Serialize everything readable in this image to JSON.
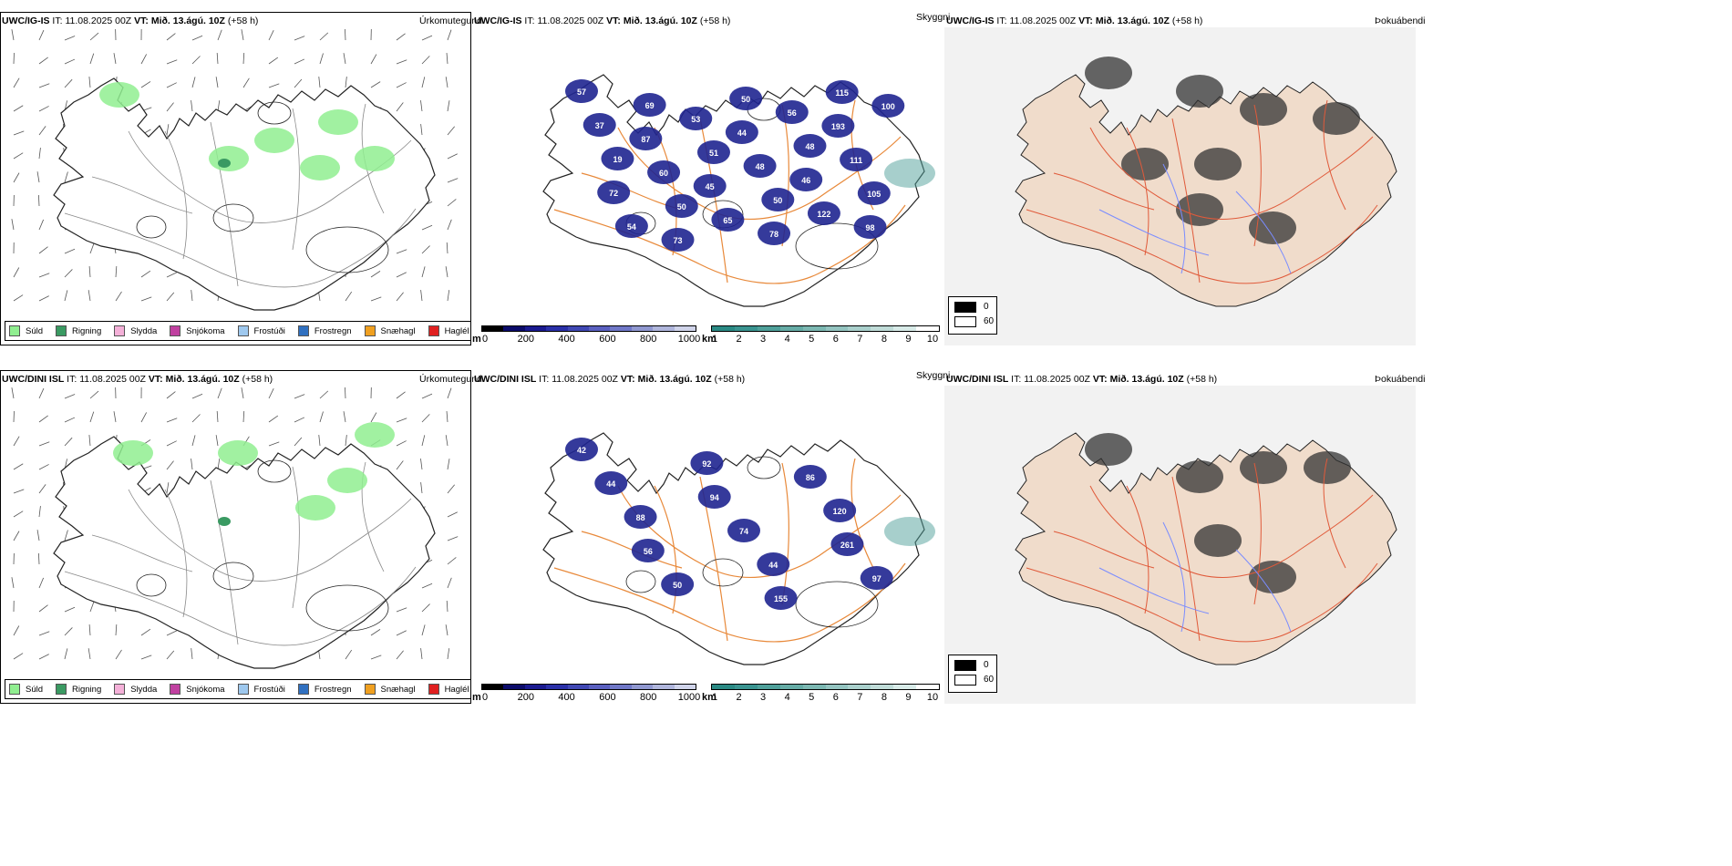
{
  "rows": [
    {
      "model": "UWC/IG-IS",
      "init_label": "IT:",
      "init_time": "11.08.2025 00Z",
      "valid_label": "VT:",
      "valid_time": "Mið. 13.ágú. 10Z",
      "lead": "(+58 h)",
      "precip_blobs": [
        [
          130,
          70
        ],
        [
          370,
          100
        ],
        [
          300,
          120
        ],
        [
          250,
          140
        ],
        [
          350,
          150
        ],
        [
          410,
          140
        ]
      ],
      "cloud_labels": [
        "57",
        "37",
        "19",
        "72",
        "54",
        "69",
        "87",
        "60",
        "50",
        "73",
        "53",
        "51",
        "45",
        "65",
        "50",
        "44",
        "48",
        "50",
        "78",
        "56",
        "48",
        "46",
        "122",
        "115",
        "193",
        "111",
        "105",
        "98",
        "100"
      ],
      "fog_dark": [
        [
          160,
          50
        ],
        [
          260,
          70
        ],
        [
          330,
          90
        ],
        [
          410,
          100
        ],
        [
          280,
          150
        ],
        [
          200,
          150
        ],
        [
          340,
          220
        ],
        [
          260,
          200
        ]
      ]
    },
    {
      "model": "UWC/DINI ISL",
      "init_label": "IT:",
      "init_time": "11.08.2025 00Z",
      "valid_label": "VT:",
      "valid_time": "Mið. 13.ágú. 10Z",
      "lead": "(+58 h)",
      "precip_blobs": [
        [
          145,
          70
        ],
        [
          410,
          50
        ],
        [
          380,
          100
        ],
        [
          345,
          130
        ],
        [
          260,
          70
        ]
      ],
      "cloud_labels": [
        "42",
        "44",
        "88",
        "56",
        "50",
        "92",
        "94",
        "74",
        "44",
        "155",
        "86",
        "120",
        "261",
        "97"
      ],
      "fog_dark": [
        [
          160,
          70
        ],
        [
          260,
          100
        ],
        [
          330,
          90
        ],
        [
          400,
          90
        ],
        [
          280,
          170
        ],
        [
          340,
          210
        ]
      ]
    }
  ],
  "panel_titles": {
    "precip": "Úrkomutegund",
    "cloud": "Skyggni",
    "fog": "Þokuábendi"
  },
  "precip_legend": [
    {
      "label": "Súld",
      "color": "#90ee90"
    },
    {
      "label": "Rigning",
      "color": "#3a9a62"
    },
    {
      "label": "Slydda",
      "color": "#f4b0d8"
    },
    {
      "label": "Snjókoma",
      "color": "#c040a0"
    },
    {
      "label": "Frostúði",
      "color": "#9ec8ee"
    },
    {
      "label": "Frostregn",
      "color": "#3070c0"
    },
    {
      "label": "Snæhagl",
      "color": "#f0a020"
    },
    {
      "label": "Haglél",
      "color": "#e02020"
    }
  ],
  "cbar_height": {
    "unit": "m",
    "ticks": [
      "0",
      "200",
      "400",
      "600",
      "800",
      "1000"
    ],
    "colors": [
      "#000000",
      "#0b0b6a",
      "#1a1a90",
      "#2a30a8",
      "#4048b4",
      "#5a60c0",
      "#7078c8",
      "#9098d0",
      "#b0b6dc",
      "#d0d4ea"
    ]
  },
  "cbar_vis": {
    "unit": "km",
    "ticks": [
      "1",
      "2",
      "3",
      "4",
      "5",
      "6",
      "7",
      "8",
      "9",
      "10"
    ],
    "colors": [
      "#2a8a84",
      "#3a9490",
      "#4fa09a",
      "#66aca6",
      "#7cb8b2",
      "#94c4c0",
      "#aad0cc",
      "#c0dcd8",
      "#d8ebe8",
      "#ffffff"
    ]
  },
  "fog_legend": [
    {
      "label": "0",
      "color": "#000000"
    },
    {
      "label": "60",
      "color": "#ffffff"
    }
  ]
}
